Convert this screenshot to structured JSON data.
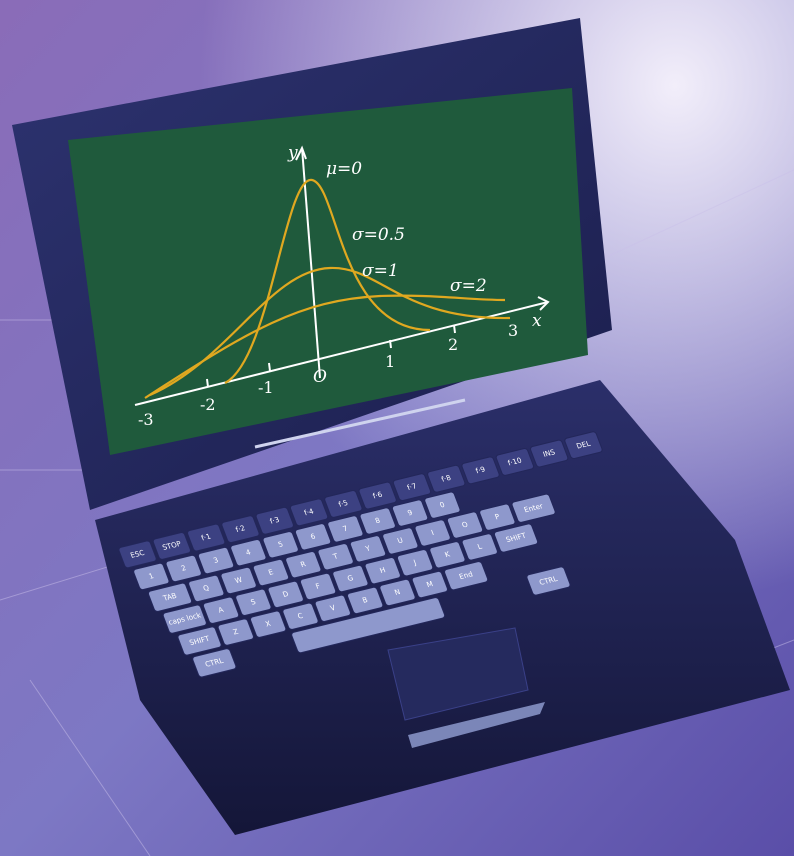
{
  "screen": {
    "y_axis_label": "y",
    "x_axis_label": "x",
    "origin": "O",
    "curve_labels": [
      "μ=0",
      "σ=0.5",
      "σ=1",
      "σ=2"
    ],
    "x_ticks": [
      "-3",
      "-2",
      "-1",
      "1",
      "2",
      "3"
    ]
  },
  "keyboard": {
    "rows": [
      [
        "ESC",
        "STOP",
        "f·1",
        "f·2",
        "f·3",
        "f·4",
        "f·5",
        "f·6",
        "f·7",
        "f·8",
        "f·9",
        "f·10",
        "INS",
        "DEL"
      ],
      [
        "1",
        "2",
        "3",
        "4",
        "5",
        "6",
        "7",
        "8",
        "9",
        "0"
      ],
      [
        "TAB",
        "Q",
        "W",
        "E",
        "R",
        "T",
        "Y",
        "U",
        "I",
        "O",
        "P",
        "Enter"
      ],
      [
        "caps lock",
        "A",
        "S",
        "D",
        "F",
        "G",
        "H",
        "J",
        "K",
        "L",
        "SHIFT"
      ],
      [
        "SHIFT",
        "Z",
        "X",
        "C",
        "V",
        "B",
        "N",
        "M",
        "End"
      ],
      [
        "CTRL",
        "CTRL"
      ]
    ]
  }
}
